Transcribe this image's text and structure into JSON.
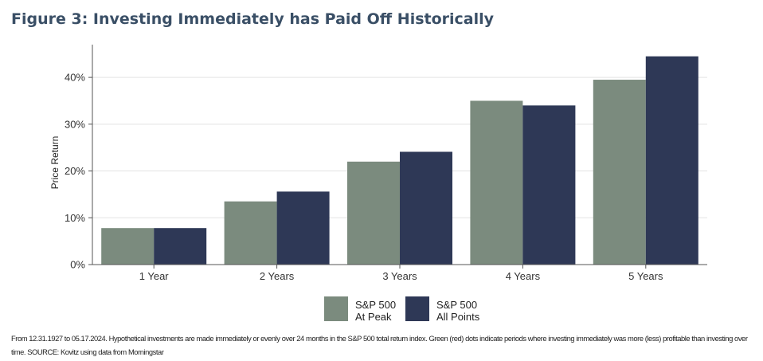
{
  "title": "Figure 3: Investing Immediately has Paid Off Historically",
  "footnote": "From 12.31.1927 to 05.17.2024. Hypothetical investments are made immediately or evenly over 24 months in the S&P 500 total return index. Green (red) dots indicate periods where investing immediately was more (less) profitable than investing over time. SOURCE: Kovitz using data from Morningstar",
  "colors": {
    "series_1": "#7b8b7e",
    "series_2": "#2e3856",
    "grid": "#e3e3e3",
    "axis": "#555555"
  },
  "chart_data": {
    "type": "bar",
    "title": "",
    "xlabel": "",
    "ylabel": "Price Return",
    "categories": [
      "1 Year",
      "2 Years",
      "3 Years",
      "4 Years",
      "5 Years"
    ],
    "series": [
      {
        "name": [
          "S&P 500",
          "At Peak"
        ],
        "values": [
          7.8,
          13.5,
          22.0,
          35.0,
          39.5
        ]
      },
      {
        "name": [
          "S&P 500",
          "All Points"
        ],
        "values": [
          7.8,
          15.6,
          24.1,
          34.0,
          44.5
        ]
      }
    ],
    "ylim": [
      0,
      47
    ],
    "yticks": [
      0,
      10,
      20,
      30,
      40
    ],
    "ytick_labels": [
      "0%",
      "10%",
      "20%",
      "30%",
      "40%"
    ],
    "grid": true,
    "legend_position": "bottom-center"
  }
}
